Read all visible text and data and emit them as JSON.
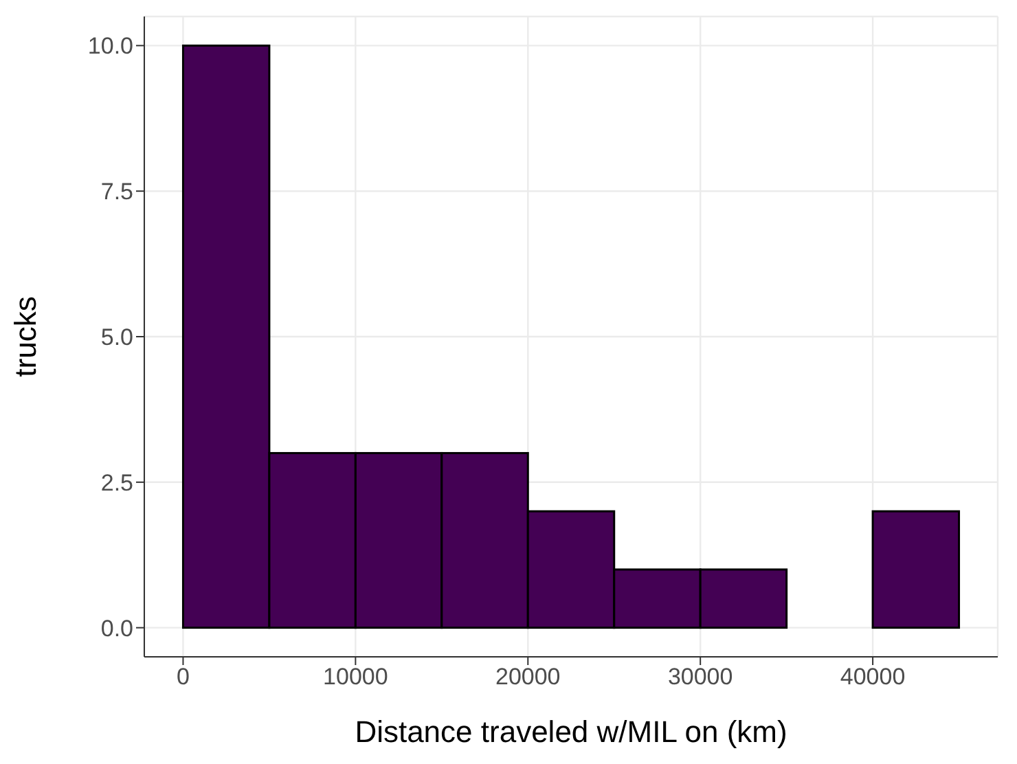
{
  "chart_data": {
    "type": "histogram",
    "xlabel": "Distance traveled w/MIL on (km)",
    "ylabel": "trucks",
    "bins": [
      0,
      5000,
      10000,
      15000,
      20000,
      25000,
      30000,
      35000,
      40000,
      45000
    ],
    "values": [
      10,
      3,
      3,
      3,
      2,
      1,
      1,
      0,
      2
    ],
    "color": "#440154",
    "xlim": [
      -2250,
      47250
    ],
    "xticks": [
      0,
      10000,
      20000,
      30000,
      40000
    ],
    "ylim": [
      -0.5,
      10.5
    ],
    "yticks": [
      {
        "value": 0,
        "label": "0.0"
      },
      {
        "value": 2.5,
        "label": "2.5"
      },
      {
        "value": 5,
        "label": "5.0"
      },
      {
        "value": 7.5,
        "label": "7.5"
      },
      {
        "value": 10,
        "label": "10.0"
      }
    ],
    "grid": true
  }
}
